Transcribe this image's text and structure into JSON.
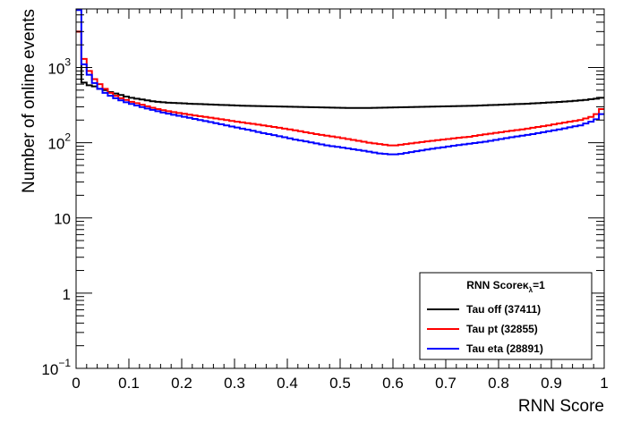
{
  "chart_data": {
    "type": "line",
    "title": "",
    "xlabel": "RNN Score",
    "ylabel": "Number of online events",
    "xlim": [
      0,
      1
    ],
    "ylim": [
      0.1,
      6000
    ],
    "log_y": true,
    "grid": false,
    "x_ticks": [
      {
        "v": 0,
        "label": "0"
      },
      {
        "v": 0.1,
        "label": "0.1"
      },
      {
        "v": 0.2,
        "label": "0.2"
      },
      {
        "v": 0.3,
        "label": "0.3"
      },
      {
        "v": 0.4,
        "label": "0.4"
      },
      {
        "v": 0.5,
        "label": "0.5"
      },
      {
        "v": 0.6,
        "label": "0.6"
      },
      {
        "v": 0.7,
        "label": "0.7"
      },
      {
        "v": 0.8,
        "label": "0.8"
      },
      {
        "v": 0.9,
        "label": "0.9"
      },
      {
        "v": 1,
        "label": "1"
      }
    ],
    "y_ticks": [
      {
        "v": 0.1,
        "base": "10",
        "exp": "−1"
      },
      {
        "v": 1,
        "base": "1",
        "exp": ""
      },
      {
        "v": 10,
        "base": "10",
        "exp": ""
      },
      {
        "v": 100,
        "base": "10",
        "exp": "2"
      },
      {
        "v": 1000,
        "base": "10",
        "exp": "3"
      }
    ],
    "legend": {
      "position": "bottom-right",
      "header_text": "RNN Score",
      "header_kappa": "κ",
      "header_kappa_sub": "λ",
      "header_suffix": "=1"
    },
    "bin_edges": [
      0,
      0.01,
      1
    ],
    "series": [
      {
        "name": "Tau off (37411)",
        "color": "#000000",
        "values": [
          3000,
          630,
          580,
          560,
          520,
          500,
          470,
          450,
          430,
          410,
          395,
          385,
          375,
          365,
          355,
          350,
          345,
          340,
          338,
          335,
          333,
          330,
          328,
          326,
          324,
          322,
          320,
          318,
          316,
          314,
          312,
          310,
          309,
          308,
          307,
          306,
          305,
          304,
          303,
          302,
          301,
          300,
          299,
          298,
          297,
          296,
          295,
          294,
          293,
          292,
          291,
          290,
          290,
          290,
          290,
          290,
          291,
          292,
          293,
          294,
          295,
          296,
          297,
          298,
          299,
          300,
          301,
          302,
          303,
          304,
          305,
          306,
          307,
          308,
          309,
          310,
          312,
          314,
          316,
          318,
          320,
          322,
          324,
          326,
          328,
          330,
          333,
          336,
          339,
          342,
          345,
          348,
          352,
          356,
          360,
          365,
          370,
          378,
          385,
          395
        ]
      },
      {
        "name": "Tau pt (32855)",
        "color": "#ff0000",
        "values": [
          3000,
          1300,
          900,
          700,
          600,
          520,
          460,
          420,
          390,
          370,
          350,
          335,
          320,
          305,
          292,
          280,
          270,
          262,
          255,
          248,
          242,
          236,
          230,
          225,
          220,
          215,
          210,
          205,
          200,
          195,
          190,
          186,
          182,
          178,
          174,
          170,
          166,
          162,
          158,
          154,
          150,
          146,
          142,
          138,
          134,
          130,
          127,
          124,
          121,
          118,
          115,
          112,
          109,
          106,
          103,
          100,
          98,
          96,
          94,
          92,
          92,
          94,
          96,
          98,
          100,
          102,
          104,
          106,
          108,
          110,
          112,
          114,
          116,
          118,
          120,
          123,
          126,
          129,
          132,
          135,
          138,
          141,
          144,
          147,
          150,
          154,
          158,
          162,
          166,
          170,
          175,
          180,
          185,
          190,
          195,
          200,
          210,
          220,
          240,
          280
        ]
      },
      {
        "name": "Tau eta (28891)",
        "color": "#0000ff",
        "values": [
          5800,
          1100,
          800,
          620,
          520,
          460,
          420,
          390,
          365,
          345,
          328,
          312,
          298,
          285,
          273,
          262,
          252,
          243,
          235,
          228,
          221,
          214,
          207,
          200,
          194,
          188,
          182,
          176,
          170,
          164,
          159,
          154,
          149,
          144,
          139,
          134,
          130,
          126,
          122,
          118,
          114,
          110,
          107,
          104,
          101,
          98,
          95,
          92,
          90,
          88,
          86,
          84,
          82,
          80,
          78,
          76,
          74,
          72,
          71,
          70,
          70,
          71,
          73,
          75,
          77,
          79,
          81,
          83,
          85,
          87,
          89,
          91,
          93,
          95,
          97,
          99,
          101,
          103,
          106,
          109,
          112,
          115,
          118,
          121,
          124,
          127,
          130,
          134,
          138,
          142,
          146,
          150,
          155,
          160,
          165,
          170,
          180,
          190,
          205,
          240
        ]
      }
    ]
  }
}
